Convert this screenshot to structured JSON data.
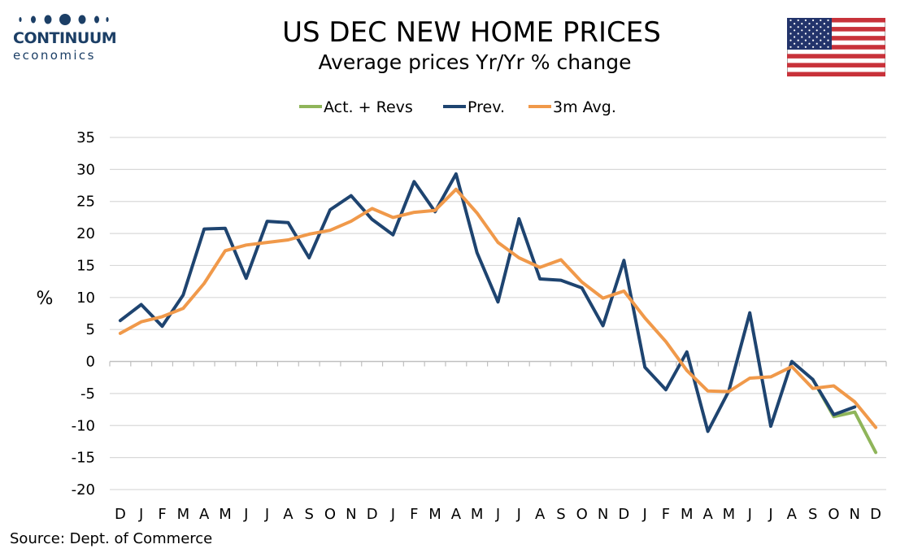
{
  "logo": {
    "name": "CONTINUUM",
    "sub": "economics",
    "color": "#1c3f66"
  },
  "source": "Source: Dept. of Commerce",
  "flag": {
    "icon": "us-flag-icon"
  },
  "chart_data": {
    "type": "line",
    "title": "US DEC NEW HOME PRICES",
    "subtitle": "Average prices Yr/Yr % change",
    "xlabel": "",
    "ylabel": "%",
    "ylim": [
      -20,
      35
    ],
    "yticks": [
      35,
      30,
      25,
      20,
      15,
      10,
      5,
      0,
      -5,
      -10,
      -15,
      -20
    ],
    "grid": true,
    "legend_position": "top-center",
    "categories": [
      "D",
      "J",
      "F",
      "M",
      "A",
      "M",
      "J",
      "J",
      "A",
      "S",
      "O",
      "N",
      "D",
      "J",
      "F",
      "M",
      "A",
      "M",
      "J",
      "J",
      "A",
      "S",
      "O",
      "N",
      "D",
      "J",
      "F",
      "M",
      "A",
      "M",
      "J",
      "J",
      "A",
      "S",
      "O",
      "N",
      "D"
    ],
    "series": [
      {
        "name": "Act. + Revs",
        "color": "#8fb55a",
        "values": [
          null,
          null,
          null,
          null,
          null,
          null,
          null,
          null,
          null,
          null,
          null,
          null,
          null,
          null,
          null,
          null,
          null,
          null,
          null,
          null,
          null,
          null,
          null,
          null,
          null,
          null,
          null,
          null,
          null,
          null,
          null,
          null,
          null,
          -2.8,
          -8.6,
          -7.9,
          -14.2
        ]
      },
      {
        "name": "Prev.",
        "color": "#1e4470",
        "values": [
          6.4,
          8.9,
          5.5,
          10.4,
          20.7,
          20.8,
          13.0,
          21.9,
          21.7,
          16.2,
          23.7,
          25.9,
          22.2,
          19.8,
          28.1,
          23.4,
          29.3,
          17.0,
          9.3,
          22.3,
          12.9,
          12.7,
          11.5,
          5.6,
          15.8,
          -0.9,
          -4.4,
          1.5,
          -10.9,
          -4.6,
          7.6,
          -10.1,
          0.0,
          -2.8,
          -8.3,
          -7.1,
          null
        ]
      },
      {
        "name": "3m Avg.",
        "color": "#f0994a",
        "values": [
          4.4,
          6.2,
          7.0,
          8.3,
          12.2,
          17.3,
          18.2,
          18.6,
          19.0,
          19.9,
          20.5,
          21.9,
          23.9,
          22.5,
          23.3,
          23.6,
          26.9,
          23.2,
          18.6,
          16.2,
          14.7,
          15.9,
          12.4,
          9.9,
          11.0,
          6.8,
          3.1,
          -1.4,
          -4.6,
          -4.7,
          -2.6,
          -2.4,
          -0.8,
          -4.2,
          -3.8,
          -6.3,
          -10.3
        ]
      }
    ]
  }
}
